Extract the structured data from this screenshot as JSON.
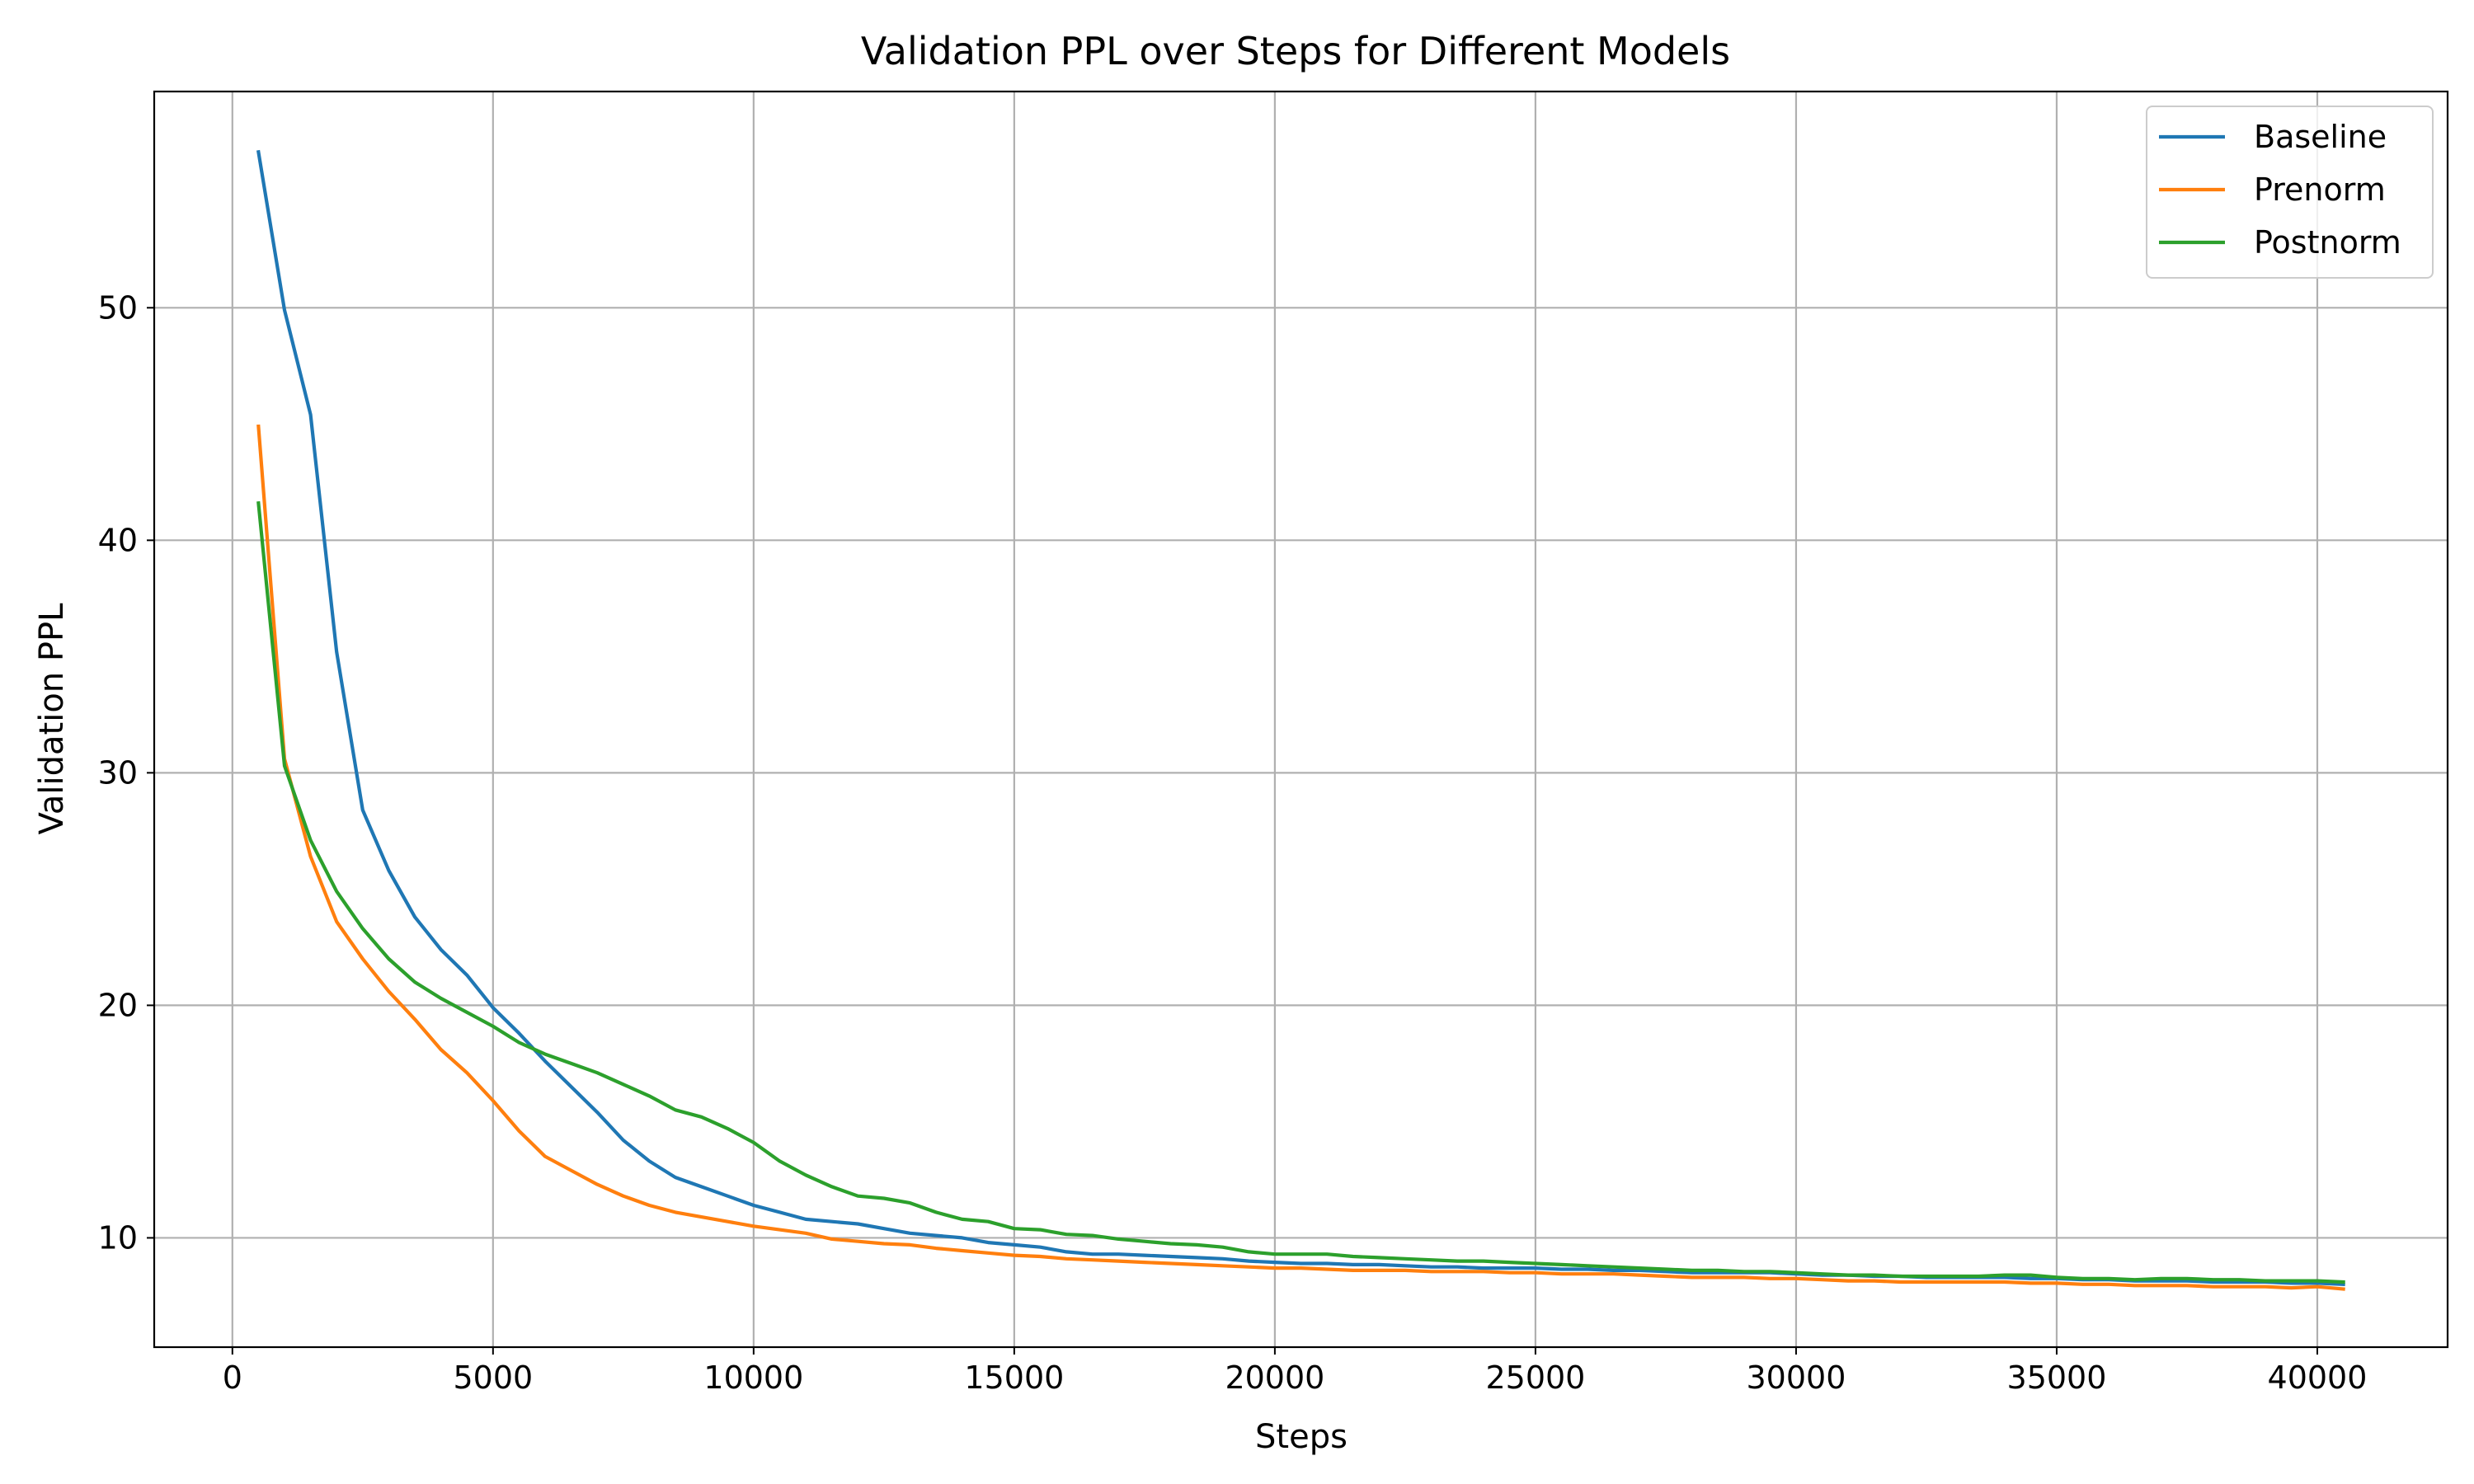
{
  "chart_data": {
    "type": "line",
    "title": "Validation PPL over Steps for Different Models",
    "xlabel": "Steps",
    "ylabel": "Validation PPL",
    "xlim": [
      -1500,
      42500
    ],
    "ylim": [
      5.3,
      59.3
    ],
    "xticks": [
      0,
      5000,
      10000,
      15000,
      20000,
      25000,
      30000,
      35000,
      40000
    ],
    "yticks": [
      10,
      20,
      30,
      40,
      50
    ],
    "xtick_labels": [
      "0",
      "5000",
      "10000",
      "15000",
      "20000",
      "25000",
      "30000",
      "35000",
      "40000"
    ],
    "ytick_labels": [
      "10",
      "20",
      "30",
      "40",
      "50"
    ],
    "grid": true,
    "legend_position": "top-right",
    "x": [
      500,
      1000,
      1500,
      2000,
      2500,
      3000,
      3500,
      4000,
      4500,
      5000,
      5500,
      6000,
      6500,
      7000,
      7500,
      8000,
      8500,
      9000,
      9500,
      10000,
      10500,
      11000,
      11500,
      12000,
      12500,
      13000,
      13500,
      14000,
      14500,
      15000,
      15500,
      16000,
      16500,
      17000,
      17500,
      18000,
      18500,
      19000,
      19500,
      20000,
      20500,
      21000,
      21500,
      22000,
      22500,
      23000,
      23500,
      24000,
      24500,
      25000,
      25500,
      26000,
      26500,
      27000,
      27500,
      28000,
      28500,
      29000,
      29500,
      30000,
      30500,
      31000,
      31500,
      32000,
      32500,
      33000,
      33500,
      34000,
      34500,
      35000,
      35500,
      36000,
      36500,
      37000,
      37500,
      38000,
      38500,
      39000,
      39500,
      40000,
      40500
    ],
    "series": [
      {
        "name": "Baseline",
        "color": "#1f77b4",
        "values": [
          56.7,
          49.9,
          45.4,
          35.2,
          28.4,
          25.8,
          23.8,
          22.4,
          21.3,
          19.9,
          18.8,
          17.6,
          16.5,
          15.4,
          14.2,
          13.3,
          12.6,
          12.2,
          11.8,
          11.4,
          11.1,
          10.8,
          10.7,
          10.6,
          10.4,
          10.2,
          10.1,
          10.0,
          9.8,
          9.7,
          9.6,
          9.4,
          9.3,
          9.3,
          9.25,
          9.2,
          9.15,
          9.1,
          9.0,
          8.95,
          8.9,
          8.9,
          8.85,
          8.85,
          8.8,
          8.75,
          8.75,
          8.7,
          8.7,
          8.7,
          8.65,
          8.65,
          8.6,
          8.6,
          8.55,
          8.5,
          8.5,
          8.5,
          8.5,
          8.45,
          8.4,
          8.4,
          8.35,
          8.35,
          8.3,
          8.3,
          8.3,
          8.3,
          8.25,
          8.25,
          8.2,
          8.2,
          8.15,
          8.15,
          8.15,
          8.1,
          8.1,
          8.1,
          8.05,
          8.05,
          8.0
        ]
      },
      {
        "name": "Prenorm",
        "color": "#ff7f0e",
        "values": [
          44.9,
          30.6,
          26.4,
          23.6,
          22.0,
          20.6,
          19.4,
          18.1,
          17.1,
          15.9,
          14.6,
          13.5,
          12.9,
          12.3,
          11.8,
          11.4,
          11.1,
          10.9,
          10.7,
          10.5,
          10.35,
          10.2,
          9.95,
          9.85,
          9.75,
          9.7,
          9.55,
          9.45,
          9.35,
          9.25,
          9.2,
          9.1,
          9.05,
          9.0,
          8.95,
          8.9,
          8.85,
          8.8,
          8.75,
          8.7,
          8.7,
          8.65,
          8.6,
          8.6,
          8.6,
          8.55,
          8.55,
          8.55,
          8.5,
          8.5,
          8.45,
          8.45,
          8.45,
          8.4,
          8.35,
          8.3,
          8.3,
          8.3,
          8.25,
          8.25,
          8.2,
          8.15,
          8.15,
          8.1,
          8.1,
          8.1,
          8.1,
          8.1,
          8.05,
          8.05,
          8.0,
          8.0,
          7.95,
          7.95,
          7.95,
          7.9,
          7.9,
          7.9,
          7.85,
          7.9,
          7.8
        ]
      },
      {
        "name": "Postnorm",
        "color": "#2ca02c",
        "values": [
          41.6,
          30.3,
          27.1,
          24.9,
          23.3,
          22.0,
          21.0,
          20.3,
          19.7,
          19.1,
          18.4,
          17.9,
          17.5,
          17.1,
          16.6,
          16.1,
          15.5,
          15.2,
          14.7,
          14.1,
          13.3,
          12.7,
          12.2,
          11.8,
          11.7,
          11.5,
          11.1,
          10.8,
          10.7,
          10.4,
          10.35,
          10.15,
          10.1,
          9.95,
          9.85,
          9.75,
          9.7,
          9.6,
          9.4,
          9.3,
          9.3,
          9.3,
          9.2,
          9.15,
          9.1,
          9.05,
          9.0,
          9.0,
          8.95,
          8.9,
          8.85,
          8.8,
          8.75,
          8.7,
          8.65,
          8.6,
          8.6,
          8.55,
          8.55,
          8.5,
          8.45,
          8.4,
          8.4,
          8.35,
          8.35,
          8.35,
          8.35,
          8.4,
          8.4,
          8.3,
          8.25,
          8.25,
          8.2,
          8.25,
          8.25,
          8.2,
          8.2,
          8.15,
          8.15,
          8.15,
          8.1
        ]
      }
    ]
  }
}
